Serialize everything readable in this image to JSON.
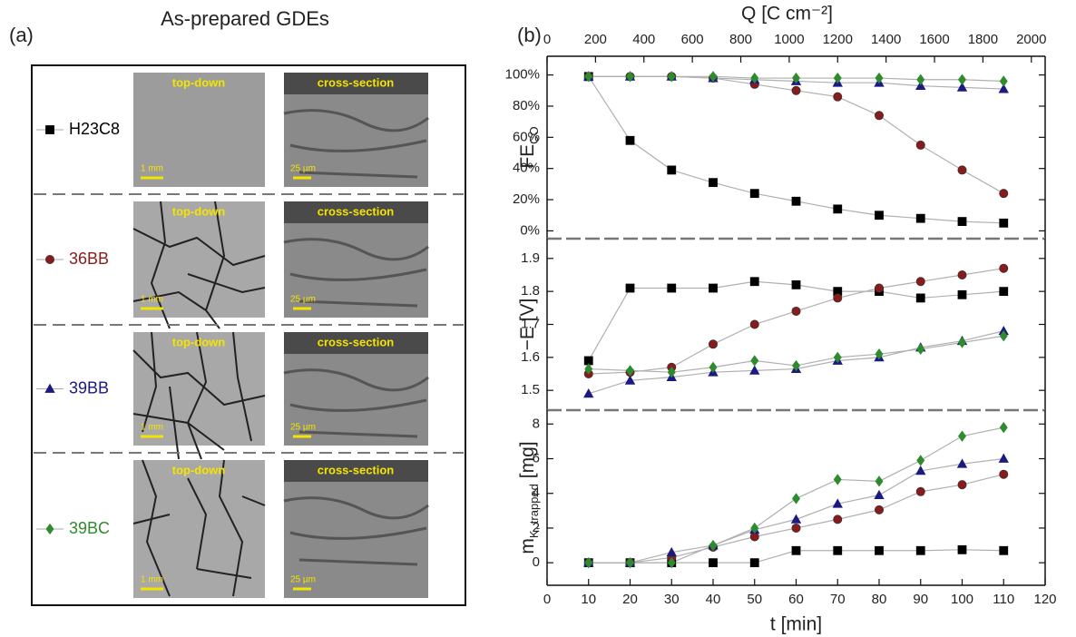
{
  "panel_a": {
    "label": "(a)",
    "title": "As-prepared GDEs",
    "samples": [
      {
        "top_label": "top-down",
        "top_scale": "1 mm",
        "cross_label": "cross-section",
        "cross_scale": "25 µm"
      },
      {
        "top_label": "top-down",
        "top_scale": "1 mm",
        "cross_label": "cross-section",
        "cross_scale": "25 µm"
      },
      {
        "top_label": "top-down",
        "top_scale": "1 mm",
        "cross_label": "cross-section",
        "cross_scale": "25 µm"
      },
      {
        "top_label": "top-down",
        "top_scale": "1 mm",
        "cross_label": "cross-section",
        "cross_scale": "25 µm"
      }
    ]
  },
  "chart_data": [
    {
      "type": "line",
      "panel_label": "(b)",
      "ylabel": "FE",
      "ylabel_sub": "CO",
      "x2label": "Q [C cm⁻²]",
      "x2lim": [
        0,
        2057
      ],
      "x2ticks": [
        0,
        200,
        400,
        600,
        800,
        1000,
        1200,
        1400,
        1600,
        1800,
        2000
      ],
      "x": [
        10,
        20,
        30,
        40,
        50,
        60,
        70,
        80,
        90,
        100,
        110
      ],
      "xlim": [
        0,
        120
      ],
      "ylim": [
        -5,
        112
      ],
      "yticks": [
        {
          "value": 0,
          "label": "0%"
        },
        {
          "value": 20,
          "label": "20%"
        },
        {
          "value": 40,
          "label": "40%"
        },
        {
          "value": 60,
          "label": "60%"
        },
        {
          "value": 80,
          "label": "80%"
        },
        {
          "value": 100,
          "label": "100%"
        }
      ],
      "series": [
        {
          "name": "H23C8",
          "color": "#000000",
          "marker": "square",
          "values": [
            99,
            58,
            39,
            31,
            24,
            19,
            14,
            10,
            8,
            6,
            5
          ]
        },
        {
          "name": "36BB",
          "color": "#8b1a1a",
          "marker": "circle",
          "values": [
            99,
            99,
            99,
            98,
            94,
            90,
            86,
            74,
            55,
            39,
            24
          ]
        },
        {
          "name": "39BB",
          "color": "#1a1a80",
          "marker": "triangle",
          "values": [
            99,
            99,
            99,
            98,
            97,
            96,
            95,
            95,
            93,
            92,
            91
          ]
        },
        {
          "name": "39BC",
          "color": "#2e8b2e",
          "marker": "diamond",
          "values": [
            99,
            99,
            99,
            99,
            98,
            98,
            98,
            98,
            97,
            97,
            96
          ]
        }
      ]
    },
    {
      "type": "line",
      "ylabel": "−E [V]",
      "x": [
        10,
        20,
        30,
        40,
        50,
        60,
        70,
        80,
        90,
        100,
        110
      ],
      "xlim": [
        0,
        120
      ],
      "ylim": [
        1.44,
        1.96
      ],
      "yticks": [
        1.5,
        1.6,
        1.7,
        1.8,
        1.9
      ],
      "series": [
        {
          "name": "H23C8",
          "color": "#000000",
          "marker": "square",
          "values": [
            1.59,
            1.81,
            1.81,
            1.81,
            1.83,
            1.82,
            1.8,
            1.8,
            1.78,
            1.79,
            1.8
          ]
        },
        {
          "name": "36BB",
          "color": "#8b1a1a",
          "marker": "circle",
          "values": [
            1.55,
            1.555,
            1.57,
            1.64,
            1.7,
            1.74,
            1.78,
            1.81,
            1.83,
            1.85,
            1.87
          ]
        },
        {
          "name": "39BB",
          "color": "#1a1a80",
          "marker": "triangle",
          "values": [
            1.49,
            1.53,
            1.54,
            1.555,
            1.56,
            1.565,
            1.59,
            1.6,
            1.63,
            1.65,
            1.68
          ]
        },
        {
          "name": "39BC",
          "color": "#2e8b2e",
          "marker": "diamond",
          "values": [
            1.565,
            1.56,
            1.555,
            1.57,
            1.59,
            1.575,
            1.6,
            1.61,
            1.625,
            1.645,
            1.665
          ]
        }
      ]
    },
    {
      "type": "line",
      "ylabel": "m",
      "ylabel_sub": "K, trapped",
      "ylabel_suffix": " [mg]",
      "xlabel": "t [min]",
      "x": [
        10,
        20,
        30,
        40,
        50,
        60,
        70,
        80,
        90,
        100,
        110
      ],
      "xlim": [
        0,
        120
      ],
      "xticks": [
        0,
        10,
        20,
        30,
        40,
        50,
        60,
        70,
        80,
        90,
        100,
        110,
        120
      ],
      "ylim": [
        -1.3,
        8.8
      ],
      "yticks": [
        0,
        2,
        4,
        6,
        8
      ],
      "series": [
        {
          "name": "H23C8",
          "color": "#000000",
          "marker": "square",
          "values": [
            0,
            0,
            0,
            0,
            0,
            0.7,
            0.7,
            0.7,
            0.7,
            0.75,
            0.7
          ]
        },
        {
          "name": "36BB",
          "color": "#8b1a1a",
          "marker": "circle",
          "values": [
            0,
            0,
            0.3,
            0.9,
            1.5,
            2.0,
            2.5,
            3.05,
            4.1,
            4.5,
            5.1
          ]
        },
        {
          "name": "39BB",
          "color": "#1a1a80",
          "marker": "triangle",
          "values": [
            0,
            0,
            0.6,
            1.0,
            1.9,
            2.5,
            3.4,
            3.9,
            5.3,
            5.7,
            6.0
          ]
        },
        {
          "name": "39BC",
          "color": "#2e8b2e",
          "marker": "diamond",
          "values": [
            0,
            0,
            0,
            1.0,
            2.0,
            3.7,
            4.8,
            4.7,
            5.9,
            7.3,
            7.8
          ]
        }
      ]
    }
  ]
}
